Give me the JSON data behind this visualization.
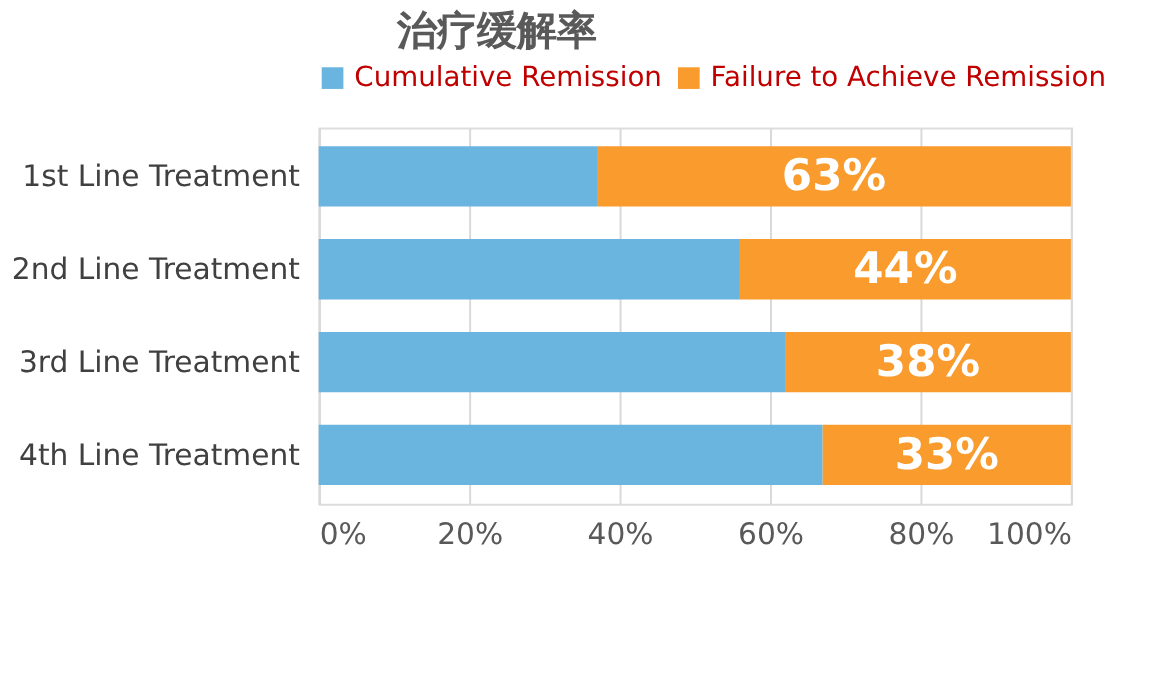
{
  "chart_data": {
    "type": "bar",
    "orientation": "horizontal",
    "stacked": true,
    "title": "治疗缓解率",
    "categories": [
      "1st Line Treatment",
      "2nd Line Treatment",
      "3rd Line Treatment",
      "4th Line Treatment"
    ],
    "series": [
      {
        "name": "Cumulative Remission",
        "color": "#6ab4e0",
        "values": [
          37,
          56,
          62,
          67
        ]
      },
      {
        "name": "Failure to Achieve Remission",
        "color": "#f99b2d",
        "values": [
          63,
          44,
          38,
          33
        ],
        "value_labels": [
          "63%",
          "44%",
          "38%",
          "33%"
        ]
      }
    ],
    "xlim": [
      0,
      100
    ],
    "xticks": [
      {
        "value": 0,
        "label": "0%"
      },
      {
        "value": 20,
        "label": "20%"
      },
      {
        "value": 40,
        "label": "40%"
      },
      {
        "value": 60,
        "label": "60%"
      },
      {
        "value": 80,
        "label": "80%"
      },
      {
        "value": 100,
        "label": "100%"
      }
    ],
    "grid": "x",
    "legend": "top"
  }
}
